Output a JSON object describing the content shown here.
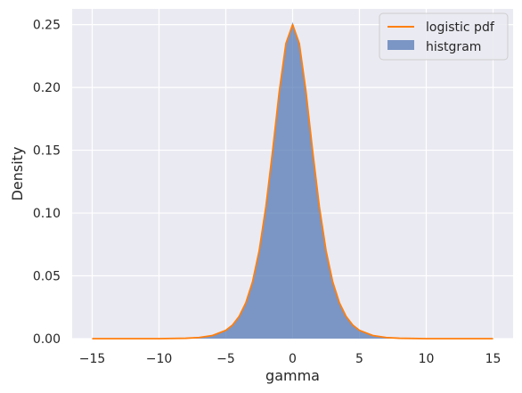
{
  "chart_data": {
    "type": "area",
    "title": "",
    "xlabel": "gamma",
    "ylabel": "Density",
    "xlim": [
      -16.5,
      16.5
    ],
    "ylim": [
      0,
      0.2625
    ],
    "xticks": [
      -15,
      -10,
      -5,
      0,
      5,
      10,
      15
    ],
    "xtick_labels": [
      "−15",
      "−10",
      "−5",
      "0",
      "5",
      "10",
      "15"
    ],
    "yticks": [
      0.0,
      0.05,
      0.1,
      0.15,
      0.2,
      0.25
    ],
    "ytick_labels": [
      "0.00",
      "0.05",
      "0.10",
      "0.15",
      "0.20",
      "0.25"
    ],
    "grid": true,
    "legend_position": "top-right",
    "series": [
      {
        "name": "logistic pdf",
        "kind": "line",
        "color": "#ff7f0e",
        "x": [
          -15,
          -12,
          -10,
          -8,
          -7,
          -6,
          -5,
          -4.5,
          -4,
          -3.5,
          -3,
          -2.5,
          -2,
          -1.5,
          -1,
          -0.5,
          0,
          0.5,
          1,
          1.5,
          2,
          2.5,
          3,
          3.5,
          4,
          4.5,
          5,
          6,
          7,
          8,
          10,
          12,
          15
        ],
        "y": [
          0.0,
          0.0,
          0.0,
          0.0003,
          0.0009,
          0.0025,
          0.0066,
          0.0108,
          0.0177,
          0.0285,
          0.0452,
          0.0701,
          0.105,
          0.1491,
          0.1966,
          0.235,
          0.25,
          0.235,
          0.1966,
          0.1491,
          0.105,
          0.0701,
          0.0452,
          0.0285,
          0.0177,
          0.0108,
          0.0066,
          0.0025,
          0.0009,
          0.0003,
          0.0,
          0.0,
          0.0
        ]
      },
      {
        "name": "histgram",
        "kind": "histogram",
        "color": "#4c72b0",
        "x": [
          -15,
          -12,
          -10,
          -8,
          -7,
          -6,
          -5,
          -4.5,
          -4,
          -3.5,
          -3,
          -2.5,
          -2,
          -1.5,
          -1,
          -0.5,
          0,
          0.5,
          1,
          1.5,
          2,
          2.5,
          3,
          3.5,
          4,
          4.5,
          5,
          6,
          7,
          8,
          10,
          12,
          15
        ],
        "y": [
          0.0,
          0.0,
          0.0,
          0.0003,
          0.0009,
          0.0025,
          0.0066,
          0.0108,
          0.0177,
          0.0285,
          0.0452,
          0.0701,
          0.105,
          0.1491,
          0.1966,
          0.235,
          0.252,
          0.235,
          0.1966,
          0.1491,
          0.105,
          0.0701,
          0.0452,
          0.0285,
          0.0177,
          0.0108,
          0.0066,
          0.0025,
          0.0009,
          0.0003,
          0.0,
          0.0,
          0.0
        ]
      }
    ]
  }
}
